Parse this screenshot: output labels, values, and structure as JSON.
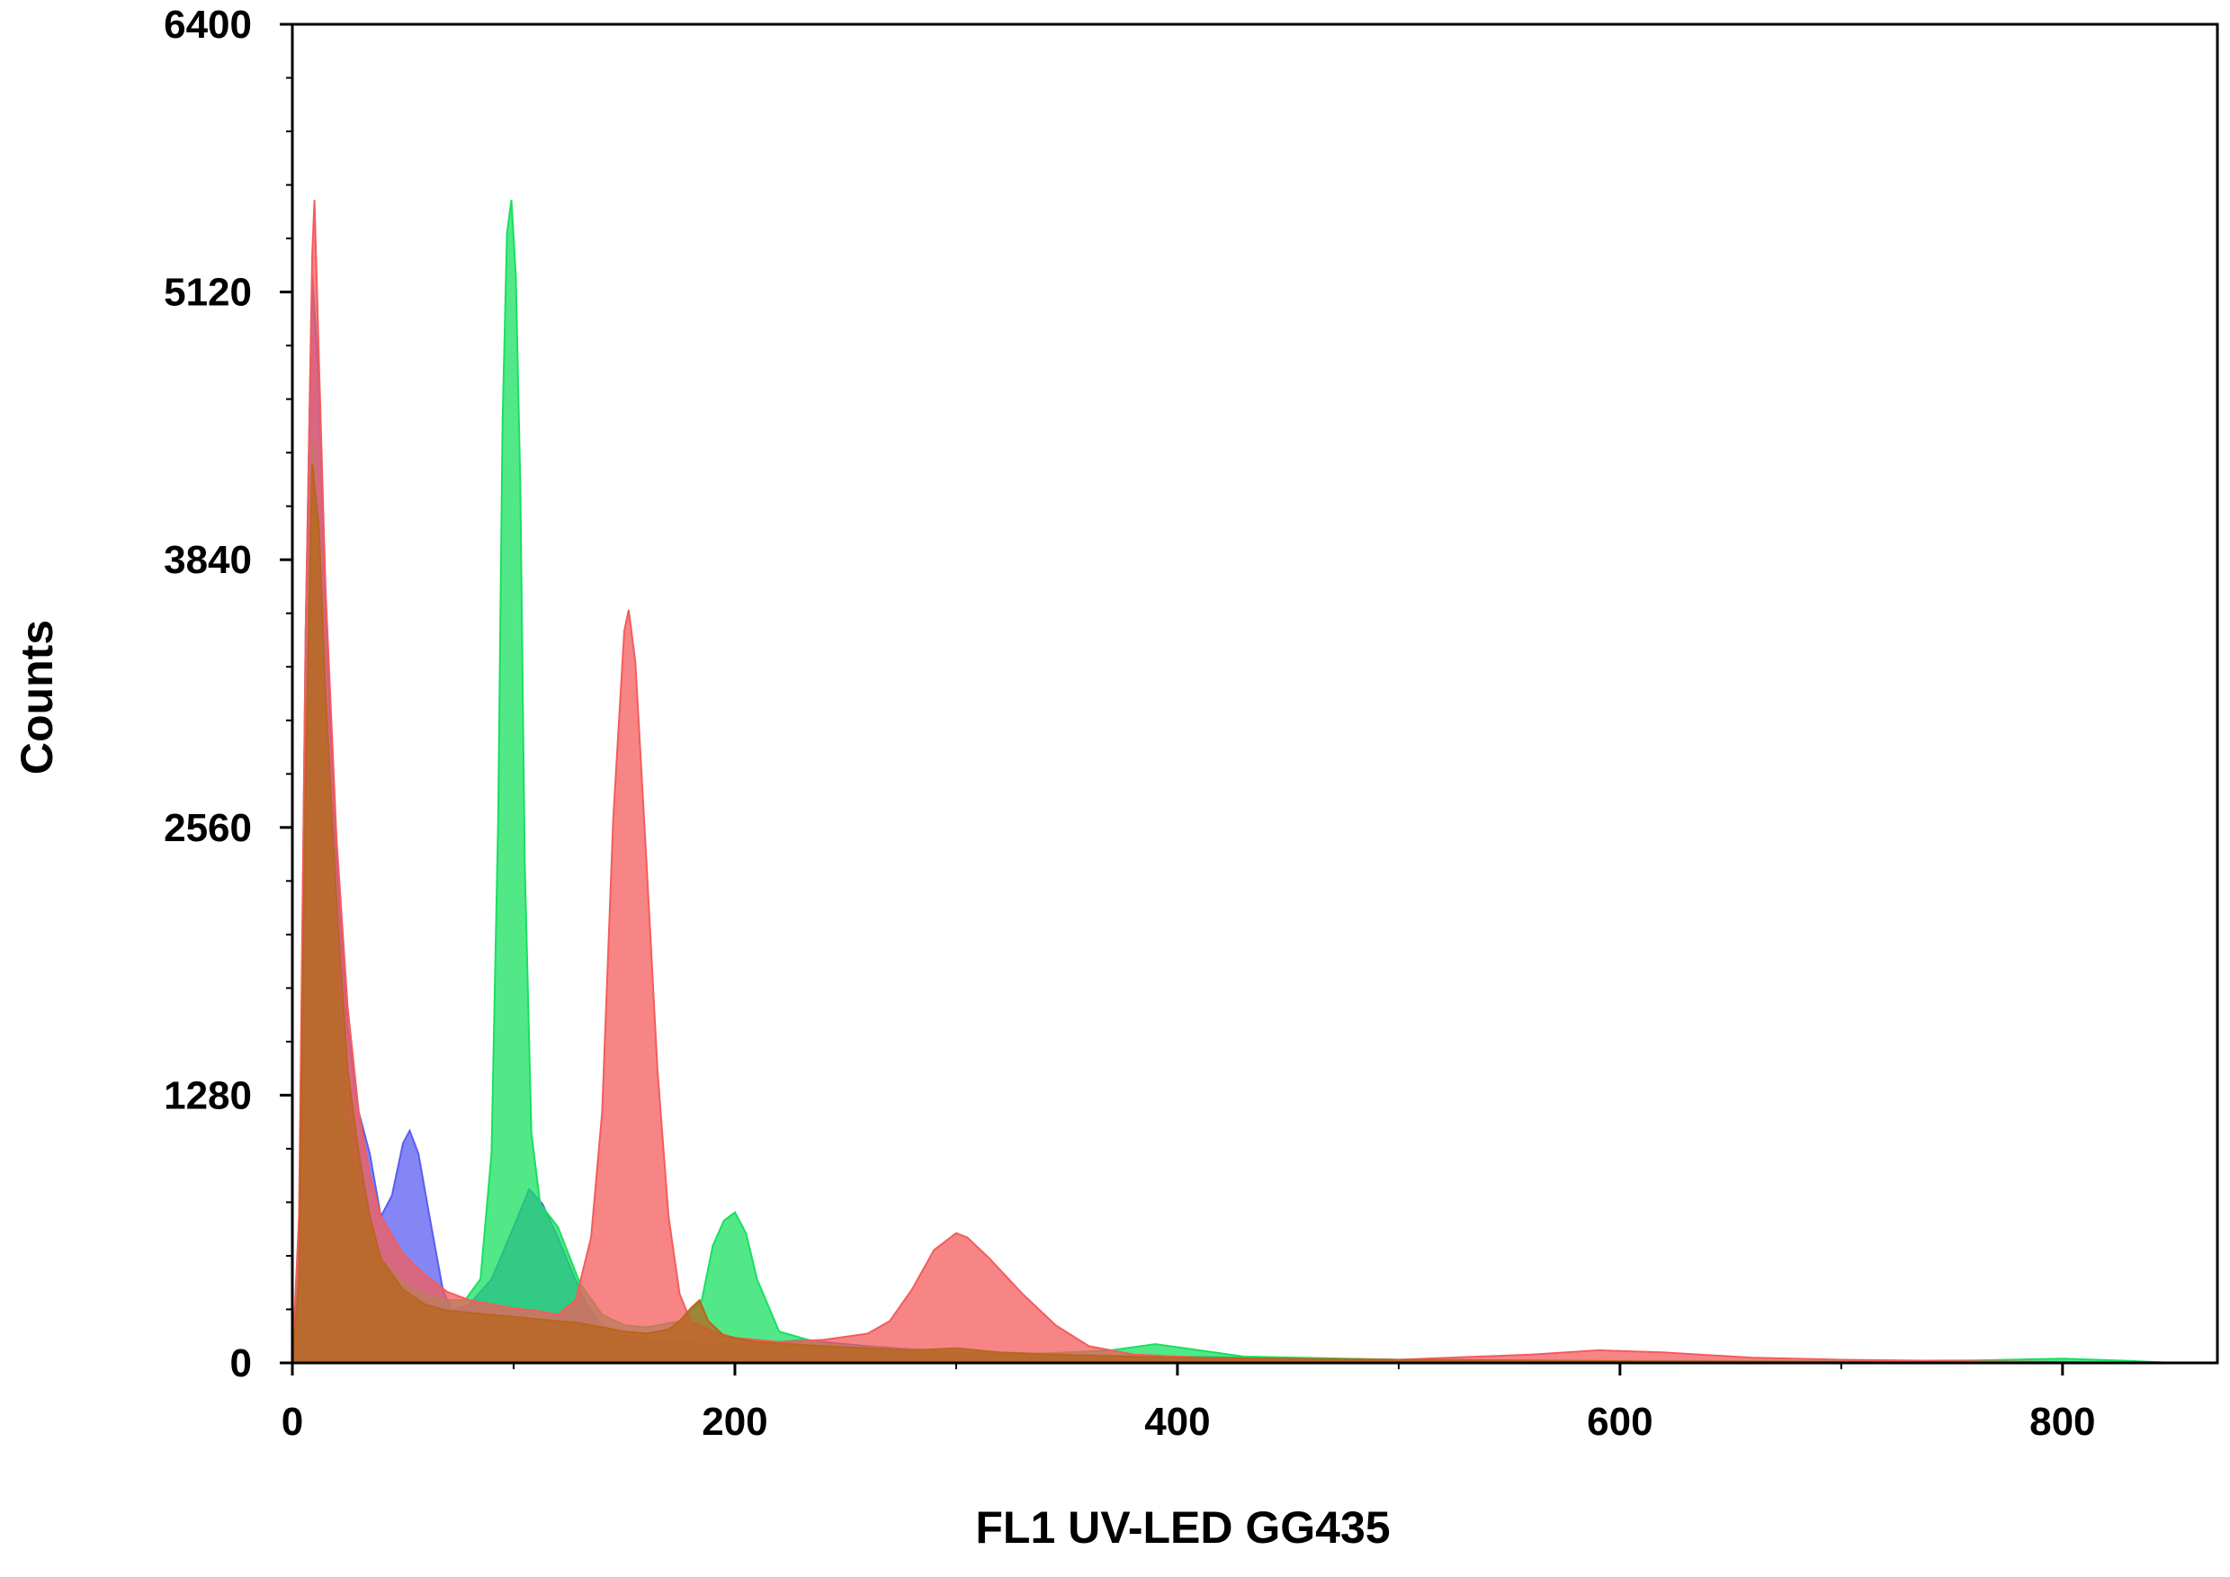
{
  "chart_data": {
    "type": "area",
    "title": "",
    "xlabel": "FL1  UV-LED GG435",
    "ylabel": "Counts",
    "xlim": [
      0,
      870
    ],
    "ylim": [
      0,
      6400
    ],
    "xticks": [
      0,
      200,
      400,
      600,
      800
    ],
    "yticks": [
      0,
      1280,
      2560,
      3840,
      5120,
      6400
    ],
    "grid": false,
    "legend": "none",
    "series": [
      {
        "color": "#5a5ef0",
        "points": [
          [
            0,
            0
          ],
          [
            3,
            500
          ],
          [
            6,
            3500
          ],
          [
            9,
            5200
          ],
          [
            12,
            4700
          ],
          [
            15,
            3600
          ],
          [
            20,
            2400
          ],
          [
            25,
            1600
          ],
          [
            30,
            1200
          ],
          [
            35,
            1000
          ],
          [
            40,
            700
          ],
          [
            45,
            800
          ],
          [
            50,
            1050
          ],
          [
            53,
            1110
          ],
          [
            57,
            1000
          ],
          [
            62,
            700
          ],
          [
            68,
            350
          ],
          [
            72,
            250
          ],
          [
            80,
            280
          ],
          [
            90,
            400
          ],
          [
            100,
            650
          ],
          [
            107,
            830
          ],
          [
            113,
            760
          ],
          [
            120,
            600
          ],
          [
            127,
            420
          ],
          [
            133,
            280
          ],
          [
            140,
            180
          ],
          [
            150,
            130
          ],
          [
            170,
            100
          ],
          [
            200,
            90
          ],
          [
            220,
            100
          ],
          [
            230,
            110
          ],
          [
            240,
            100
          ],
          [
            260,
            80
          ],
          [
            300,
            50
          ],
          [
            400,
            30
          ],
          [
            500,
            15
          ],
          [
            600,
            8
          ],
          [
            700,
            4
          ],
          [
            840,
            0
          ]
        ]
      },
      {
        "color": "#18e060",
        "points": [
          [
            0,
            0
          ],
          [
            3,
            600
          ],
          [
            6,
            3000
          ],
          [
            9,
            4400
          ],
          [
            12,
            3900
          ],
          [
            15,
            3000
          ],
          [
            20,
            1800
          ],
          [
            25,
            1100
          ],
          [
            30,
            800
          ],
          [
            40,
            500
          ],
          [
            50,
            380
          ],
          [
            60,
            330
          ],
          [
            70,
            300
          ],
          [
            78,
            300
          ],
          [
            85,
            400
          ],
          [
            90,
            1000
          ],
          [
            93,
            2600
          ],
          [
            95,
            4500
          ],
          [
            97,
            5400
          ],
          [
            99,
            5560
          ],
          [
            101,
            5200
          ],
          [
            103,
            4200
          ],
          [
            105,
            2400
          ],
          [
            108,
            1100
          ],
          [
            112,
            760
          ],
          [
            120,
            650
          ],
          [
            130,
            380
          ],
          [
            140,
            230
          ],
          [
            150,
            180
          ],
          [
            160,
            170
          ],
          [
            175,
            200
          ],
          [
            185,
            300
          ],
          [
            190,
            560
          ],
          [
            195,
            680
          ],
          [
            200,
            720
          ],
          [
            205,
            620
          ],
          [
            210,
            400
          ],
          [
            220,
            150
          ],
          [
            240,
            90
          ],
          [
            280,
            60
          ],
          [
            330,
            40
          ],
          [
            370,
            60
          ],
          [
            390,
            90
          ],
          [
            410,
            60
          ],
          [
            430,
            30
          ],
          [
            500,
            15
          ],
          [
            600,
            10
          ],
          [
            700,
            8
          ],
          [
            760,
            12
          ],
          [
            800,
            20
          ],
          [
            830,
            10
          ],
          [
            850,
            0
          ]
        ]
      },
      {
        "color": "#f45c5c",
        "points": [
          [
            0,
            0
          ],
          [
            3,
            700
          ],
          [
            6,
            3500
          ],
          [
            9,
            5300
          ],
          [
            10,
            5560
          ],
          [
            12,
            4800
          ],
          [
            15,
            3700
          ],
          [
            20,
            2500
          ],
          [
            25,
            1700
          ],
          [
            30,
            1200
          ],
          [
            35,
            900
          ],
          [
            40,
            700
          ],
          [
            50,
            520
          ],
          [
            60,
            420
          ],
          [
            70,
            340
          ],
          [
            80,
            300
          ],
          [
            90,
            280
          ],
          [
            100,
            260
          ],
          [
            110,
            250
          ],
          [
            120,
            230
          ],
          [
            128,
            300
          ],
          [
            135,
            600
          ],
          [
            140,
            1200
          ],
          [
            145,
            2600
          ],
          [
            150,
            3500
          ],
          [
            152,
            3600
          ],
          [
            155,
            3350
          ],
          [
            160,
            2400
          ],
          [
            165,
            1400
          ],
          [
            170,
            700
          ],
          [
            175,
            330
          ],
          [
            180,
            200
          ],
          [
            190,
            150
          ],
          [
            200,
            120
          ],
          [
            220,
            100
          ],
          [
            240,
            110
          ],
          [
            260,
            140
          ],
          [
            270,
            200
          ],
          [
            280,
            350
          ],
          [
            290,
            540
          ],
          [
            300,
            620
          ],
          [
            305,
            600
          ],
          [
            315,
            500
          ],
          [
            330,
            330
          ],
          [
            345,
            180
          ],
          [
            360,
            80
          ],
          [
            380,
            40
          ],
          [
            420,
            20
          ],
          [
            500,
            15
          ],
          [
            560,
            40
          ],
          [
            590,
            60
          ],
          [
            620,
            50
          ],
          [
            660,
            25
          ],
          [
            700,
            15
          ],
          [
            760,
            8
          ],
          [
            840,
            0
          ]
        ]
      },
      {
        "color": "#b8661e",
        "points": [
          [
            0,
            0
          ],
          [
            3,
            400
          ],
          [
            6,
            2800
          ],
          [
            9,
            4300
          ],
          [
            12,
            4000
          ],
          [
            15,
            3200
          ],
          [
            20,
            2200
          ],
          [
            25,
            1400
          ],
          [
            30,
            1000
          ],
          [
            35,
            700
          ],
          [
            40,
            500
          ],
          [
            50,
            350
          ],
          [
            60,
            280
          ],
          [
            70,
            250
          ],
          [
            80,
            240
          ],
          [
            90,
            230
          ],
          [
            100,
            220
          ],
          [
            110,
            210
          ],
          [
            120,
            200
          ],
          [
            130,
            190
          ],
          [
            140,
            170
          ],
          [
            150,
            150
          ],
          [
            160,
            140
          ],
          [
            170,
            160
          ],
          [
            175,
            200
          ],
          [
            180,
            260
          ],
          [
            184,
            300
          ],
          [
            188,
            200
          ],
          [
            195,
            130
          ],
          [
            210,
            100
          ],
          [
            240,
            80
          ],
          [
            280,
            60
          ],
          [
            300,
            70
          ],
          [
            320,
            50
          ],
          [
            360,
            35
          ],
          [
            400,
            25
          ],
          [
            500,
            15
          ],
          [
            600,
            8
          ],
          [
            700,
            4
          ],
          [
            840,
            0
          ]
        ]
      }
    ]
  }
}
